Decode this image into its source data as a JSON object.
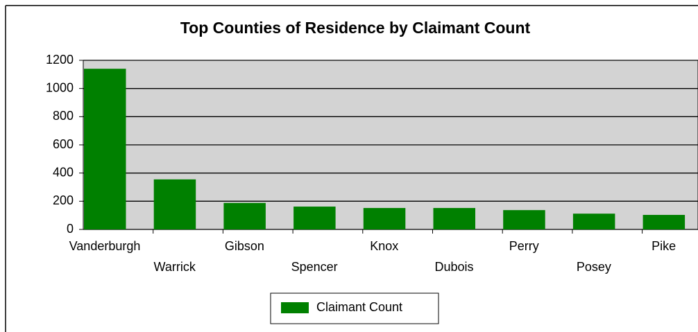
{
  "chart_data": {
    "type": "bar",
    "title": "Top Counties of Residence by Claimant Count",
    "categories": [
      "Vanderburgh",
      "Warrick",
      "Gibson",
      "Spencer",
      "Knox",
      "Dubois",
      "Perry",
      "Posey",
      "Pike"
    ],
    "series": [
      {
        "name": "Claimant Count",
        "color": "#008000",
        "values": [
          1140,
          355,
          188,
          162,
          152,
          152,
          137,
          112,
          103
        ]
      }
    ],
    "ylim": [
      0,
      1200
    ],
    "yticks": [
      0,
      200,
      400,
      600,
      800,
      1000,
      1200
    ],
    "grid": true,
    "legend": "bottom"
  }
}
